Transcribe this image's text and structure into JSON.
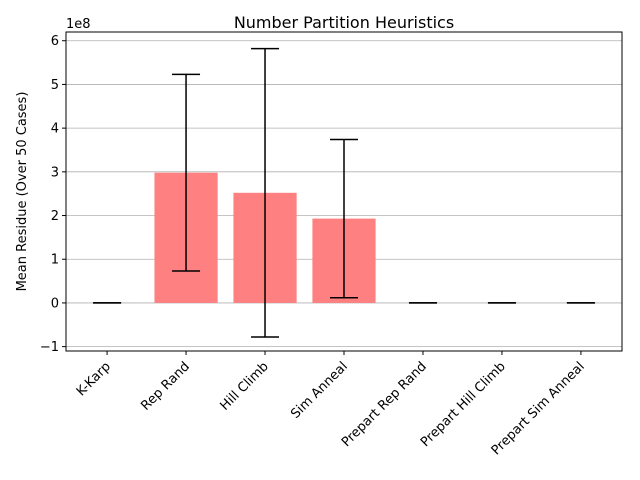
{
  "chart_data": {
    "type": "bar",
    "title": "Number Partition Heuristics",
    "xlabel": "",
    "ylabel": "Mean Residue (Over 50 Cases)",
    "offset_label": "1e8",
    "scale": 100000000,
    "categories": [
      "K-Karp",
      "Rep Rand",
      "Hill Climb",
      "Sim Anneal",
      "Prepart Rep Rand",
      "Prepart Hill Climb",
      "Prepart Sim Anneal"
    ],
    "series": [
      {
        "values": [
          0.001,
          2.98,
          2.52,
          1.93,
          0.0,
          0.0,
          0.0
        ],
        "errors": [
          0.001,
          2.25,
          3.3,
          1.81,
          0.0,
          0.0,
          0.0
        ]
      }
    ],
    "ylim": [
      -1.1,
      6.2
    ],
    "yticks": [
      -1,
      0,
      1,
      2,
      3,
      4,
      5,
      6
    ],
    "grid": "y",
    "colors": {
      "bar": "#ff8080",
      "error": "#000000",
      "grid": "#b0b0b0"
    }
  }
}
